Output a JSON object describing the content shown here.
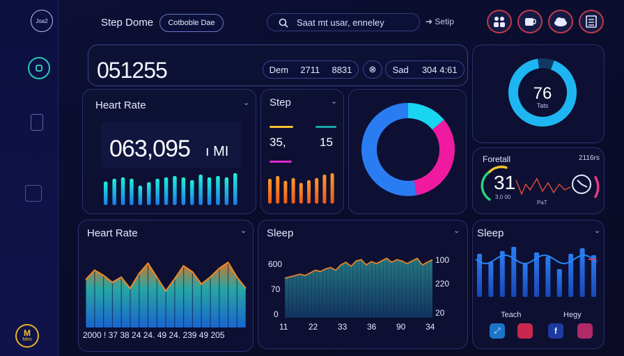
{
  "header": {
    "title": "Step Dome",
    "badge": "Cotboble Dae",
    "search_value": "Saat mt usar, enneley",
    "setup_label": "Setip"
  },
  "sidebar": {
    "logo_text": "Joa2",
    "bottom_badge": "M",
    "bottom_badge_sub": "Miro"
  },
  "summary": {
    "big_number": "051255",
    "pill1_a": "Dem",
    "pill1_b": "2711",
    "pill1_c": "8831",
    "pill3_a": "Sad",
    "pill3_b": "304 4:61"
  },
  "heart_top": {
    "title": "Heart Rate",
    "value": "063,095",
    "unit": "MI",
    "bars": [
      34,
      38,
      40,
      38,
      28,
      33,
      38,
      40,
      42,
      40,
      36,
      44,
      40,
      42,
      40,
      46
    ]
  },
  "step": {
    "title": "Step",
    "left": "35,",
    "right": "15",
    "bars": [
      36,
      40,
      33,
      37,
      30,
      34,
      37,
      42,
      44
    ],
    "line_colors": [
      "#f5c12e",
      "#1aa5a5",
      "#e028c8"
    ]
  },
  "donut_main": {
    "segments": [
      {
        "label": "cyan",
        "value": 14,
        "color": "#19d6f0"
      },
      {
        "label": "magenta",
        "value": 33,
        "color": "#f01aa0"
      },
      {
        "label": "blue",
        "value": 53,
        "color": "#2a7cf2"
      }
    ]
  },
  "ring_small": {
    "value": "76",
    "label": "Tats",
    "percent": 92
  },
  "foretail": {
    "title": "Foretall",
    "right_label": "2116rs",
    "value": "31",
    "sub1": "3.0 00",
    "sub2": "PaT"
  },
  "heart_area": {
    "title": "Heart Rate",
    "xlabels": "2000 ! 37 38 24 24. 49 24. 239 49 205",
    "values": [
      55,
      66,
      60,
      52,
      58,
      45,
      62,
      74,
      58,
      42,
      56,
      71,
      64,
      50,
      58,
      68,
      75,
      58,
      45
    ]
  },
  "sleep_mid": {
    "title": "Sleep",
    "yleft": [
      "600",
      "70",
      "0"
    ],
    "yright": [
      "100",
      "220",
      "20"
    ],
    "xlabels": [
      "11",
      "22",
      "33",
      "36",
      "90",
      "34"
    ],
    "values": [
      60,
      62,
      64,
      66,
      64,
      68,
      72,
      70,
      74,
      76,
      72,
      80,
      84,
      78,
      86,
      88,
      80,
      85,
      82,
      86,
      90,
      84,
      88,
      86,
      82,
      86,
      90,
      80,
      84,
      88
    ]
  },
  "sleep_right": {
    "title": "Sleep",
    "bars": [
      62,
      50,
      66,
      72,
      48,
      64,
      58,
      40,
      62,
      70,
      60
    ],
    "label_left": "Teach",
    "label_right": "Hegy"
  }
}
